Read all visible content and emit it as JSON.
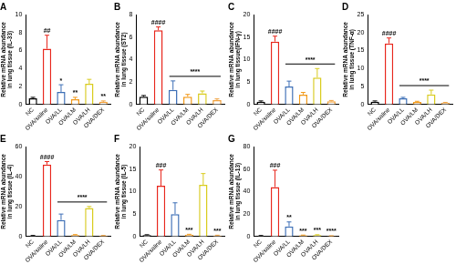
{
  "chart_data": [
    {
      "type": "bar",
      "title": "A",
      "categories": [
        "NC",
        "OVA/saline",
        "OVA/LL",
        "OVA/LM",
        "OVA/LH",
        "OVA/DEX"
      ],
      "values": [
        0.7,
        6.2,
        1.4,
        0.6,
        2.3,
        0.3
      ],
      "errors": [
        0.1,
        1.5,
        0.8,
        0.2,
        0.5,
        0.1
      ],
      "colors": [
        "#000000",
        "#e8261c",
        "#3d6fb6",
        "#f29a1b",
        "#d9cc1f",
        "#f0a03c"
      ],
      "y_label": [
        "Relative mRNA abundance",
        "in lung tissue (IL-33)"
      ],
      "ylim": [
        0,
        10
      ],
      "yticks": [
        0,
        2,
        4,
        6,
        8,
        10
      ],
      "grid": false,
      "annotations": [
        {
          "category": "OVA/saline",
          "text": "##"
        },
        {
          "category": "OVA/LL",
          "text": "*"
        },
        {
          "category": "OVA/LM",
          "text": "**"
        },
        {
          "category": "OVA/DEX",
          "text": "**"
        }
      ]
    },
    {
      "type": "bar",
      "title": "B",
      "categories": [
        "NC",
        "OVA/saline",
        "OVA/LL",
        "OVA/LM",
        "OVA/LH",
        "OVA/DEX"
      ],
      "values": [
        0.7,
        6.6,
        1.3,
        0.7,
        1.0,
        0.4
      ],
      "errors": [
        0.1,
        0.3,
        0.8,
        0.2,
        0.2,
        0.1
      ],
      "colors": [
        "#000000",
        "#e8261c",
        "#3d6fb6",
        "#f29a1b",
        "#d9cc1f",
        "#f0a03c"
      ],
      "y_label": [
        "Relative mRNA abundance",
        "in lung tissue (ST2)"
      ],
      "ylim": [
        0,
        8
      ],
      "yticks": [
        0,
        2,
        4,
        6,
        8
      ],
      "grid": false,
      "annotations": [
        {
          "category": "OVA/saline",
          "text": "####"
        }
      ],
      "bracket": {
        "from": "OVA/LL",
        "to": "OVA/DEX",
        "text": "****"
      }
    },
    {
      "type": "bar",
      "title": "C",
      "categories": [
        "NC",
        "OVA/saline",
        "OVA/LL",
        "OVA/LM",
        "OVA/LH",
        "OVA/DEX"
      ],
      "values": [
        0.6,
        14,
        4,
        2.2,
        6,
        0.7
      ],
      "errors": [
        0.2,
        1.2,
        1.2,
        0.5,
        2,
        0.2
      ],
      "colors": [
        "#000000",
        "#e8261c",
        "#3d6fb6",
        "#f29a1b",
        "#d9cc1f",
        "#f0a03c"
      ],
      "y_label": [
        "Relative mRNA abundance",
        "in lung tissue(IFN-γ)"
      ],
      "ylim": [
        0,
        20
      ],
      "yticks": [
        0,
        5,
        10,
        15,
        20
      ],
      "grid": false,
      "annotations": [
        {
          "category": "OVA/saline",
          "text": "####"
        }
      ],
      "bracket": {
        "from": "OVA/LL",
        "to": "OVA/DEX",
        "text": "****"
      }
    },
    {
      "type": "bar",
      "title": "D",
      "categories": [
        "NC",
        "OVA/saline",
        "OVA/LL",
        "OVA/LM",
        "OVA/LH",
        "OVA/DEX"
      ],
      "values": [
        0.8,
        17,
        1.7,
        0.7,
        2.8,
        0.5
      ],
      "errors": [
        0.2,
        1.5,
        0.3,
        0.2,
        1.2,
        0.1
      ],
      "colors": [
        "#000000",
        "#e8261c",
        "#3d6fb6",
        "#f29a1b",
        "#d9cc1f",
        "#f0a03c"
      ],
      "y_label": [
        "Relative mRNA abundance",
        "in lung tissue (TNF-α)"
      ],
      "ylim": [
        0,
        25
      ],
      "yticks": [
        0,
        5,
        10,
        15,
        20,
        25
      ],
      "grid": false,
      "annotations": [
        {
          "category": "OVA/saline",
          "text": "####"
        }
      ],
      "bracket": {
        "from": "OVA/LL",
        "to": "OVA/DEX",
        "text": "****"
      }
    },
    {
      "type": "bar",
      "title": "E",
      "categories": [
        "NC",
        "OVA/saline",
        "OVA/LL",
        "OVA/LM",
        "OVA/LH",
        "OVA/DEX"
      ],
      "values": [
        0.5,
        48,
        11,
        1,
        19,
        0.5
      ],
      "errors": [
        0.2,
        2,
        4,
        0.3,
        1,
        0.2
      ],
      "colors": [
        "#000000",
        "#e8261c",
        "#3d6fb6",
        "#f29a1b",
        "#d9cc1f",
        "#f0a03c"
      ],
      "y_label": [
        "Relative mRNA abundance",
        "in lung tissue (IL-4)"
      ],
      "ylim": [
        0,
        60
      ],
      "yticks": [
        0,
        20,
        40,
        60
      ],
      "grid": false,
      "annotations": [
        {
          "category": "OVA/saline",
          "text": "####"
        }
      ],
      "bracket": {
        "from": "OVA/LL",
        "to": "OVA/DEX",
        "text": "****"
      }
    },
    {
      "type": "bar",
      "title": "F",
      "categories": [
        "NC",
        "OVA/saline",
        "OVA/LL",
        "OVA/LM",
        "OVA/LH",
        "OVA/DEX"
      ],
      "values": [
        0.3,
        11.3,
        5,
        0.4,
        11.5,
        0.2
      ],
      "errors": [
        0.1,
        3.5,
        2.5,
        0.1,
        2.5,
        0.1
      ],
      "colors": [
        "#000000",
        "#e8261c",
        "#3d6fb6",
        "#f29a1b",
        "#d9cc1f",
        "#f0a03c"
      ],
      "y_label": [
        "Relative mRNA abundance",
        "in lung tissue (IL-5)"
      ],
      "ylim": [
        0,
        20
      ],
      "yticks": [
        0,
        5,
        10,
        15,
        20
      ],
      "grid": false,
      "annotations": [
        {
          "category": "OVA/saline",
          "text": "###"
        },
        {
          "category": "OVA/LM",
          "text": "***"
        },
        {
          "category": "OVA/DEX",
          "text": "***"
        }
      ]
    },
    {
      "type": "bar",
      "title": "G",
      "categories": [
        "NC",
        "OVA/saline",
        "OVA/LL",
        "OVA/LM",
        "OVA/LH",
        "OVA/DEX"
      ],
      "values": [
        0.7,
        44,
        9,
        1,
        1.2,
        0.5
      ],
      "errors": [
        0.2,
        15,
        4,
        0.3,
        0.4,
        0.2
      ],
      "colors": [
        "#000000",
        "#e8261c",
        "#3d6fb6",
        "#f29a1b",
        "#d9cc1f",
        "#f0a03c"
      ],
      "y_label": [
        "Relative mRNA abundance",
        "in lung tissue (IL-13)"
      ],
      "ylim": [
        0,
        80
      ],
      "yticks": [
        0,
        20,
        40,
        60,
        80
      ],
      "grid": false,
      "annotations": [
        {
          "category": "OVA/saline",
          "text": "###"
        },
        {
          "category": "OVA/LL",
          "text": "**"
        },
        {
          "category": "OVA/LM",
          "text": "***"
        },
        {
          "category": "OVA/LH",
          "text": "***"
        },
        {
          "category": "OVA/DEX",
          "text": "****"
        }
      ]
    }
  ]
}
